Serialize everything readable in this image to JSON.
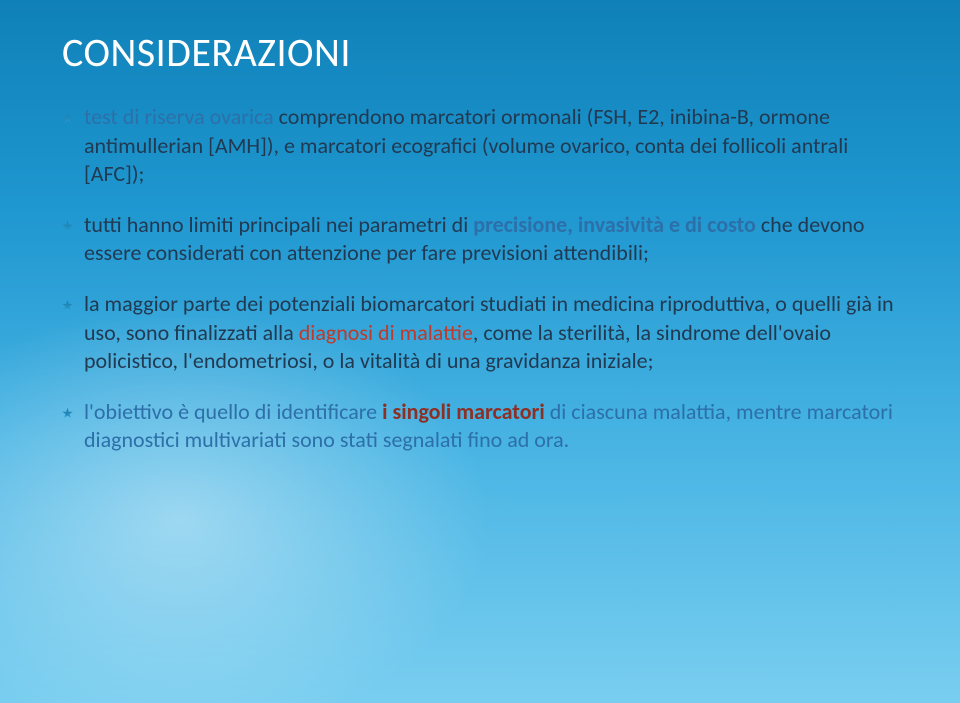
{
  "title": {
    "text": "CONSIDERAZIONI",
    "fontsize": 40
  },
  "body_fontsize": 22,
  "colors": {
    "title": "#ffffff",
    "body_text": "#213a52",
    "label_blue": "#2d6fa8",
    "keyword_red": "#c0392b",
    "keyword_red_bold": "#8e2f24",
    "bg_gradient_top": "#0f81b8",
    "bg_gradient_bottom": "#79cef0"
  },
  "bullets": [
    {
      "lead_label": "test di riserva ovarica ",
      "rest_a": "comprendono marcatori ormonali (FSH, E2, inibina-B, ormone antimullerian [AMH]), e marcatori ecografici (volume ovarico, conta dei follicoli antrali [AFC]);"
    },
    {
      "rest_a": "tutti hanno limiti principali nei parametri di ",
      "kw1": "precisione, invasività e di costo ",
      "rest_b": "che devono essere considerati con attenzione per fare previsioni attendibili;"
    },
    {
      "rest_a": "la maggior parte dei potenziali biomarcatori studiati in medicina riproduttiva, o quelli già in uso, sono finalizzati alla ",
      "kw1": "diagnosi di malattie",
      "rest_b": ", come la sterilità, la sindrome dell'ovaio policistico, l'endometriosi, o la vitalità di una gravidanza iniziale;"
    },
    {
      "rest_a": "l'obiettivo è quello di identificare ",
      "kw1": "i singoli marcatori ",
      "rest_b": "di ciascuna malattia, mentre marcatori diagnostici multivariati sono stati segnalati fino ad ora."
    }
  ]
}
